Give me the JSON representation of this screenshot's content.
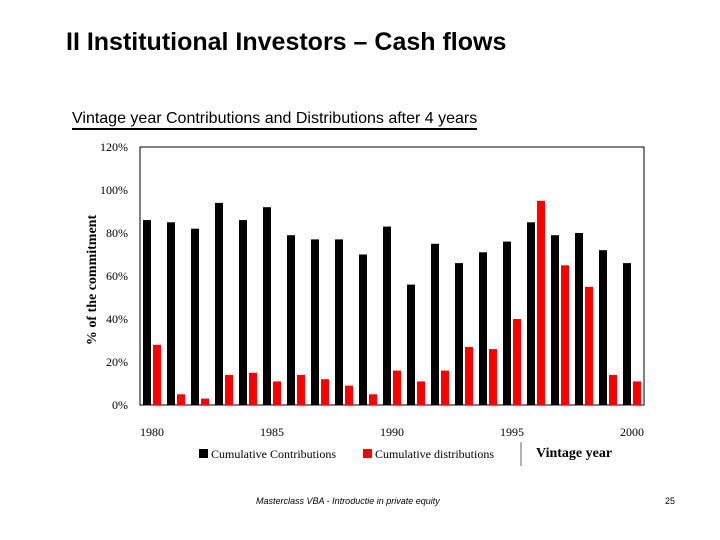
{
  "slide": {
    "title": "II Institutional Investors – Cash flows",
    "subtitle": "Vintage year Contributions and Distributions after 4 years",
    "footer": "Masterclass VBA - Introductie in private equity",
    "page_number": "25"
  },
  "chart_data": {
    "type": "bar",
    "title": "",
    "xlabel": "Vintage year",
    "ylabel": "% of the commitment",
    "ylim": [
      0,
      120
    ],
    "y_ticks": [
      "0%",
      "20%",
      "40%",
      "60%",
      "80%",
      "100%",
      "120%"
    ],
    "x_tick_labels": [
      {
        "year": 1980,
        "label": "1980"
      },
      {
        "year": 1985,
        "label": "1985"
      },
      {
        "year": 1990,
        "label": "1990"
      },
      {
        "year": 1995,
        "label": "1995"
      },
      {
        "year": 2000,
        "label": "2000"
      }
    ],
    "categories": [
      1980,
      1981,
      1982,
      1983,
      1984,
      1985,
      1986,
      1987,
      1988,
      1989,
      1990,
      1991,
      1992,
      1993,
      1994,
      1995,
      1996,
      1997,
      1998,
      1999,
      2000
    ],
    "series": [
      {
        "name": "Cumulative Contributions",
        "color": "#000000",
        "values": [
          86,
          85,
          82,
          94,
          86,
          92,
          79,
          77,
          77,
          70,
          83,
          56,
          75,
          66,
          71,
          76,
          85,
          79,
          80,
          72,
          66
        ]
      },
      {
        "name": "Cumulative distributions",
        "color": "#ff0000",
        "values": [
          28,
          5,
          3,
          14,
          15,
          11,
          14,
          12,
          9,
          5,
          16,
          11,
          16,
          27,
          26,
          40,
          95,
          65,
          55,
          14,
          11
        ]
      }
    ],
    "grid": false,
    "legend_position": "bottom"
  }
}
